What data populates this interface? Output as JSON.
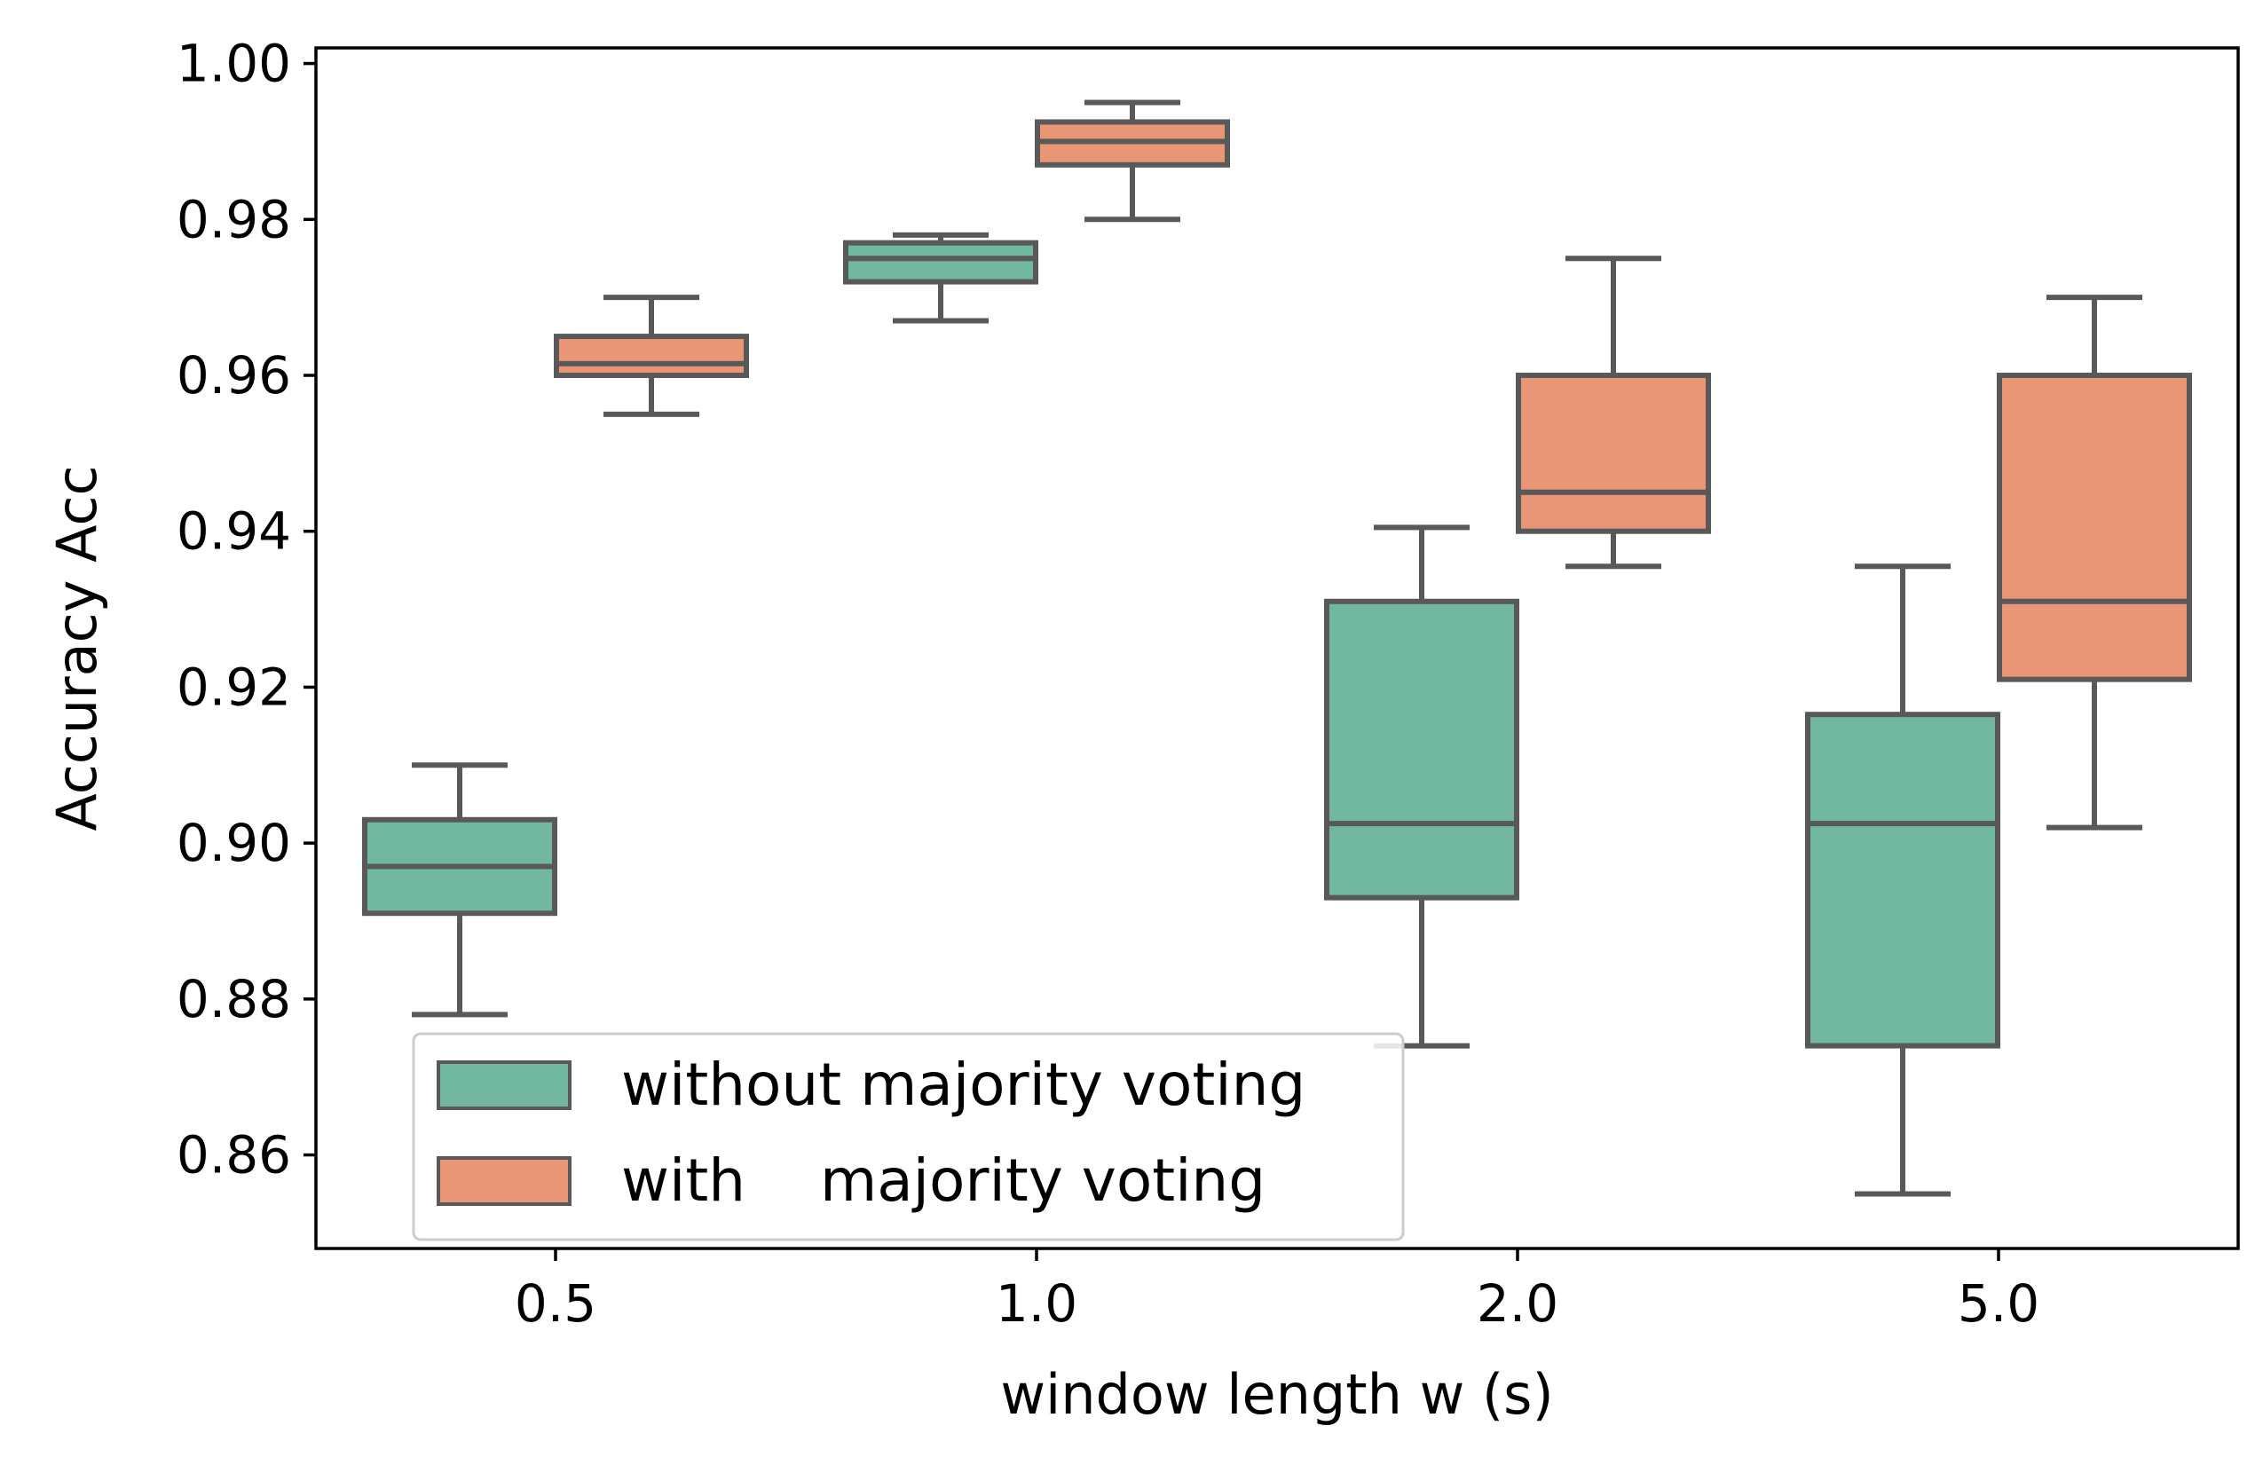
{
  "chart_data": {
    "type": "box",
    "title": "",
    "xlabel": "window length w (s)",
    "ylabel": "Accuracy Acc",
    "ylim": [
      0.848,
      1.002
    ],
    "yticks": [
      0.86,
      0.88,
      0.9,
      0.92,
      0.94,
      0.96,
      0.98,
      1.0
    ],
    "ytick_labels": [
      "0.86",
      "0.88",
      "0.90",
      "0.92",
      "0.94",
      "0.96",
      "0.98",
      "1.00"
    ],
    "categories": [
      "0.5",
      "1.0",
      "2.0",
      "5.0"
    ],
    "grid": false,
    "legend_position": "lower-left",
    "series": [
      {
        "name": "without majority voting",
        "color": "#72b8a1",
        "boxes": [
          {
            "whislo": 0.878,
            "q1": 0.891,
            "med": 0.897,
            "q3": 0.903,
            "whishi": 0.91
          },
          {
            "whislo": 0.967,
            "q1": 0.972,
            "med": 0.975,
            "q3": 0.977,
            "whishi": 0.978
          },
          {
            "whislo": 0.874,
            "q1": 0.893,
            "med": 0.9025,
            "q3": 0.931,
            "whishi": 0.9405
          },
          {
            "whislo": 0.855,
            "q1": 0.874,
            "med": 0.9025,
            "q3": 0.9165,
            "whishi": 0.9355
          }
        ]
      },
      {
        "name": "with    majority voting",
        "color": "#e99677",
        "boxes": [
          {
            "whislo": 0.955,
            "q1": 0.96,
            "med": 0.9615,
            "q3": 0.965,
            "whishi": 0.97
          },
          {
            "whislo": 0.98,
            "q1": 0.987,
            "med": 0.99,
            "q3": 0.9925,
            "whishi": 0.995
          },
          {
            "whislo": 0.9355,
            "q1": 0.94,
            "med": 0.945,
            "q3": 0.96,
            "whishi": 0.975
          },
          {
            "whislo": 0.902,
            "q1": 0.921,
            "med": 0.931,
            "q3": 0.96,
            "whishi": 0.97
          }
        ]
      }
    ],
    "line_color": "#595959"
  }
}
